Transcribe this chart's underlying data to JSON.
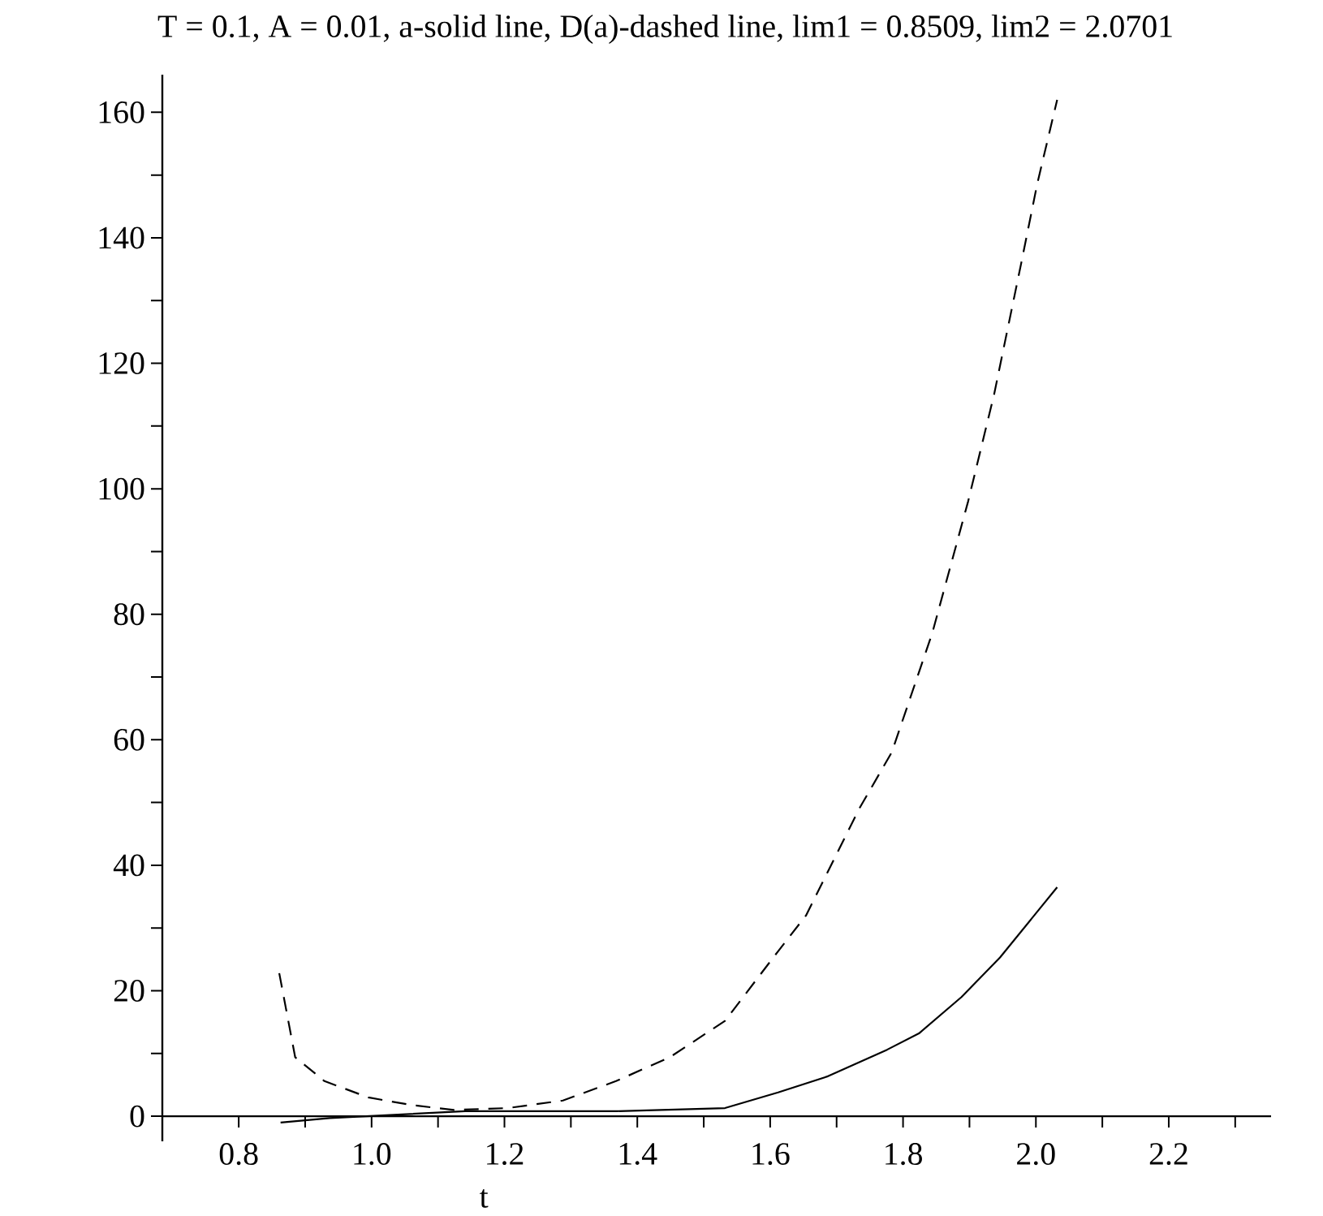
{
  "chart_data": {
    "type": "line",
    "title": "T = 0.1, A = 0.01, a-solid line, D(a)-dashed line, lim1 = 0.8509, lim2 = 2.0701",
    "xlabel": "t",
    "xlim": [
      0.685,
      2.354
    ],
    "ylim": [
      -4,
      166
    ],
    "xticks": [
      {
        "value": 0.8,
        "label": "0.8"
      },
      {
        "value": 0.9,
        "label": null
      },
      {
        "value": 1.0,
        "label": "1.0"
      },
      {
        "value": 1.1,
        "label": null
      },
      {
        "value": 1.2,
        "label": "1.2"
      },
      {
        "value": 1.3,
        "label": null
      },
      {
        "value": 1.4,
        "label": "1.4"
      },
      {
        "value": 1.5,
        "label": null
      },
      {
        "value": 1.6,
        "label": "1.6"
      },
      {
        "value": 1.7,
        "label": null
      },
      {
        "value": 1.8,
        "label": "1.8"
      },
      {
        "value": 1.9,
        "label": null
      },
      {
        "value": 2.0,
        "label": "2.0"
      },
      {
        "value": 2.1,
        "label": null
      },
      {
        "value": 2.2,
        "label": "2.2"
      },
      {
        "value": 2.3,
        "label": null
      }
    ],
    "yticks": [
      0,
      {
        "value": 10,
        "label": null
      },
      20,
      {
        "value": 30,
        "label": null
      },
      40,
      {
        "value": 50,
        "label": null
      },
      60,
      {
        "value": 70,
        "label": null
      },
      80,
      {
        "value": 90,
        "label": null
      },
      100,
      {
        "value": 110,
        "label": null
      },
      120,
      {
        "value": 130,
        "label": null
      },
      140,
      {
        "value": 150,
        "label": null
      },
      160
    ],
    "marker": "none",
    "series": [
      {
        "color": "#000000",
        "line_style": "solid",
        "x": [
          0.863,
          0.937,
          1.141,
          1.368,
          1.532,
          1.612,
          1.685,
          1.776,
          1.824,
          1.888,
          1.946,
          2.032
        ],
        "values": [
          -1,
          -0.3,
          0.8,
          0.8,
          1.3,
          3.8,
          6.3,
          10.6,
          13.2,
          19,
          25.3,
          36.5
        ]
      },
      {
        "color": "#000000",
        "line_style": "dashed",
        "x": [
          0.861,
          0.885,
          0.929,
          0.995,
          1.059,
          1.124,
          1.205,
          1.288,
          1.368,
          1.449,
          1.532,
          1.612,
          1.654,
          1.734,
          1.783,
          1.844,
          1.898,
          1.937,
          1.978,
          2.002,
          2.032
        ],
        "values": [
          22.8,
          9.4,
          5.6,
          3,
          1.8,
          1.0,
          1.3,
          2.5,
          5.6,
          9.4,
          15.2,
          26.3,
          32,
          49,
          58,
          77,
          98,
          115,
          136,
          148.6,
          162
        ]
      }
    ]
  }
}
